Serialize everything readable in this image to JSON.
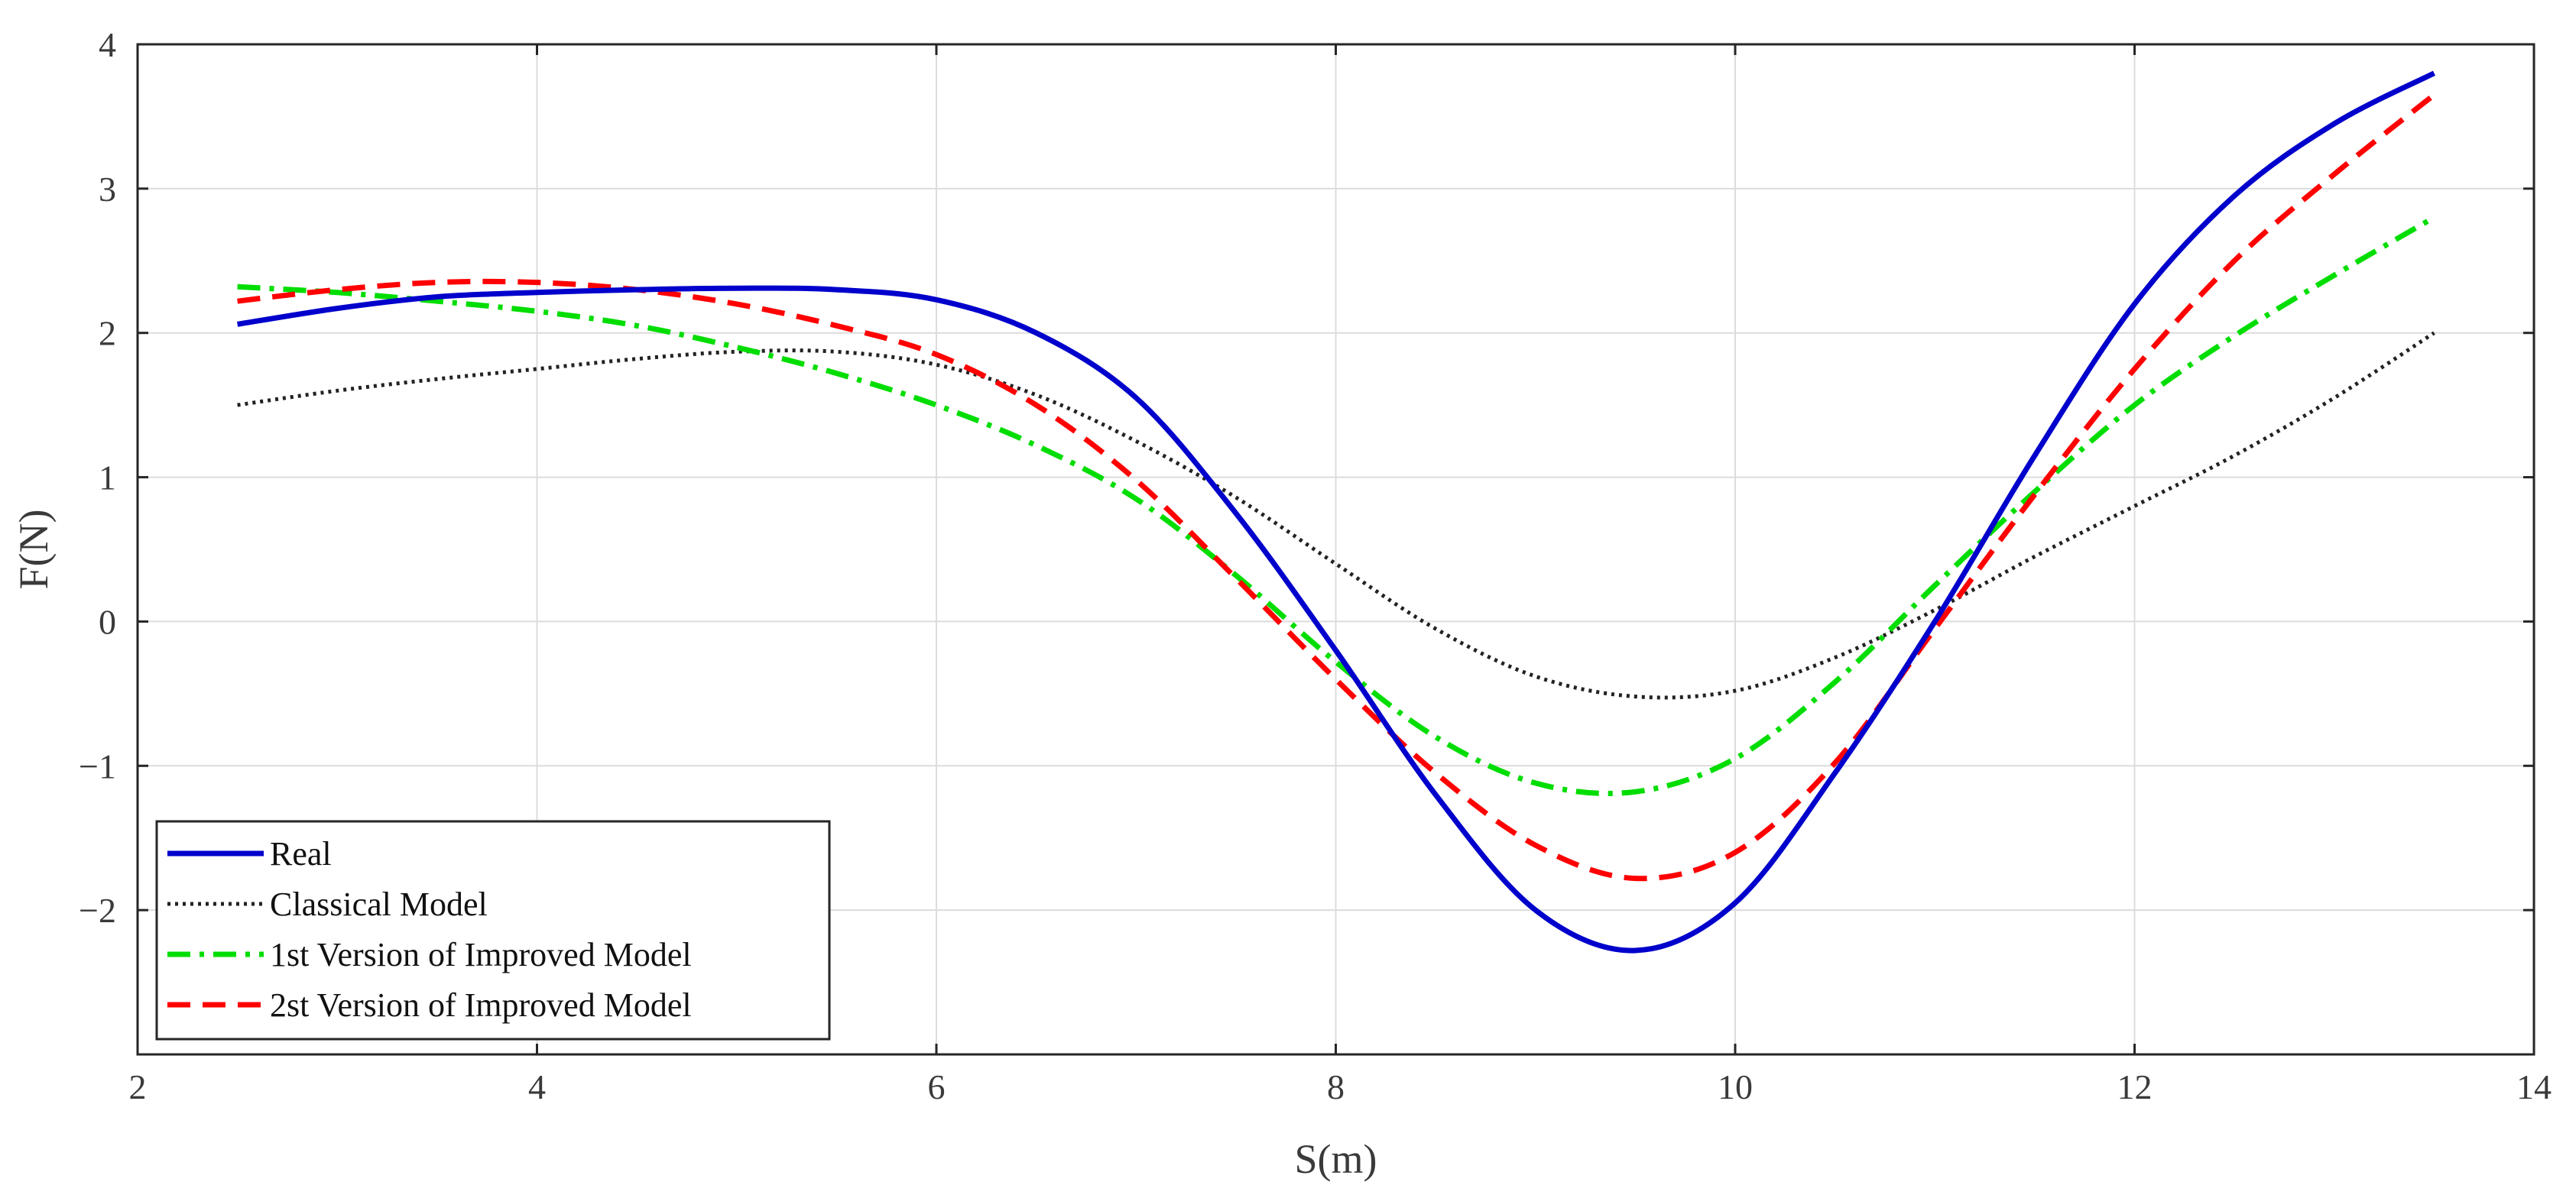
{
  "chart_data": {
    "type": "line",
    "title": "",
    "xlabel": "S(m)",
    "ylabel": "F(N)",
    "xlim": [
      2,
      14
    ],
    "ylim": [
      -3,
      4
    ],
    "xticks": [
      2,
      4,
      6,
      8,
      10,
      12,
      14
    ],
    "yticks": [
      -2,
      -1,
      0,
      1,
      2,
      3,
      4
    ],
    "ytick_labels": [
      "−2",
      "−1",
      "0",
      "1",
      "2",
      "3",
      "4"
    ],
    "grid": true,
    "legend_position": "bottom-left",
    "x": [
      2.5,
      3.0,
      3.5,
      4.0,
      4.5,
      5.0,
      5.5,
      6.0,
      6.5,
      7.0,
      7.5,
      8.0,
      8.5,
      9.0,
      9.5,
      10.0,
      10.5,
      11.0,
      11.5,
      12.0,
      12.5,
      13.0,
      13.5
    ],
    "series": [
      {
        "name": "Real",
        "color": "#0000cc",
        "style": "solid",
        "values": [
          2.06,
          2.17,
          2.25,
          2.28,
          2.3,
          2.31,
          2.3,
          2.23,
          2.0,
          1.55,
          0.75,
          -0.2,
          -1.2,
          -2.0,
          -2.28,
          -1.95,
          -1.05,
          0.0,
          1.15,
          2.2,
          2.95,
          3.45,
          3.8
        ]
      },
      {
        "name": "Classical Model",
        "color": "#222222",
        "style": "dotted",
        "values": [
          1.5,
          1.6,
          1.68,
          1.75,
          1.82,
          1.87,
          1.87,
          1.78,
          1.57,
          1.25,
          0.86,
          0.4,
          -0.05,
          -0.38,
          -0.52,
          -0.48,
          -0.25,
          0.08,
          0.45,
          0.8,
          1.15,
          1.55,
          2.0
        ]
      },
      {
        "name": "1st Version of Improved Model",
        "color": "#00dd00",
        "style": "dashdot",
        "values": [
          2.32,
          2.28,
          2.22,
          2.15,
          2.05,
          1.9,
          1.72,
          1.5,
          1.22,
          0.85,
          0.32,
          -0.28,
          -0.8,
          -1.12,
          -1.18,
          -0.95,
          -0.42,
          0.25,
          0.9,
          1.5,
          1.98,
          2.4,
          2.8
        ]
      },
      {
        "name": "2st Version of Improved Model",
        "color": "#ff0000",
        "style": "dashed",
        "values": [
          2.22,
          2.3,
          2.35,
          2.35,
          2.3,
          2.2,
          2.05,
          1.85,
          1.5,
          0.98,
          0.3,
          -0.4,
          -1.05,
          -1.55,
          -1.78,
          -1.6,
          -0.98,
          -0.05,
          0.88,
          1.75,
          2.5,
          3.1,
          3.65
        ]
      }
    ]
  }
}
